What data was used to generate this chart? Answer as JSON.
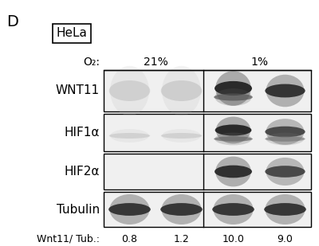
{
  "panel_label": "D",
  "cell_line_label": "HeLa",
  "o2_label": "O₂:",
  "conditions": [
    "21%",
    "1%"
  ],
  "row_labels": [
    "WNT11",
    "HIF1α",
    "HIF2α",
    "Tubulin"
  ],
  "bottom_label": "Wnt11/ Tub.:",
  "bottom_values": [
    "0.8",
    "1.2",
    "10.0",
    "9.0"
  ],
  "figure_bg": "#ffffff",
  "blot_bg": "#f0f0f0",
  "divider_color": "#000000",
  "band_dark": "#2a2a2a",
  "band_medium": "#555555",
  "band_light": "#aaaaaa",
  "band_verylight": "#d8d8d8"
}
